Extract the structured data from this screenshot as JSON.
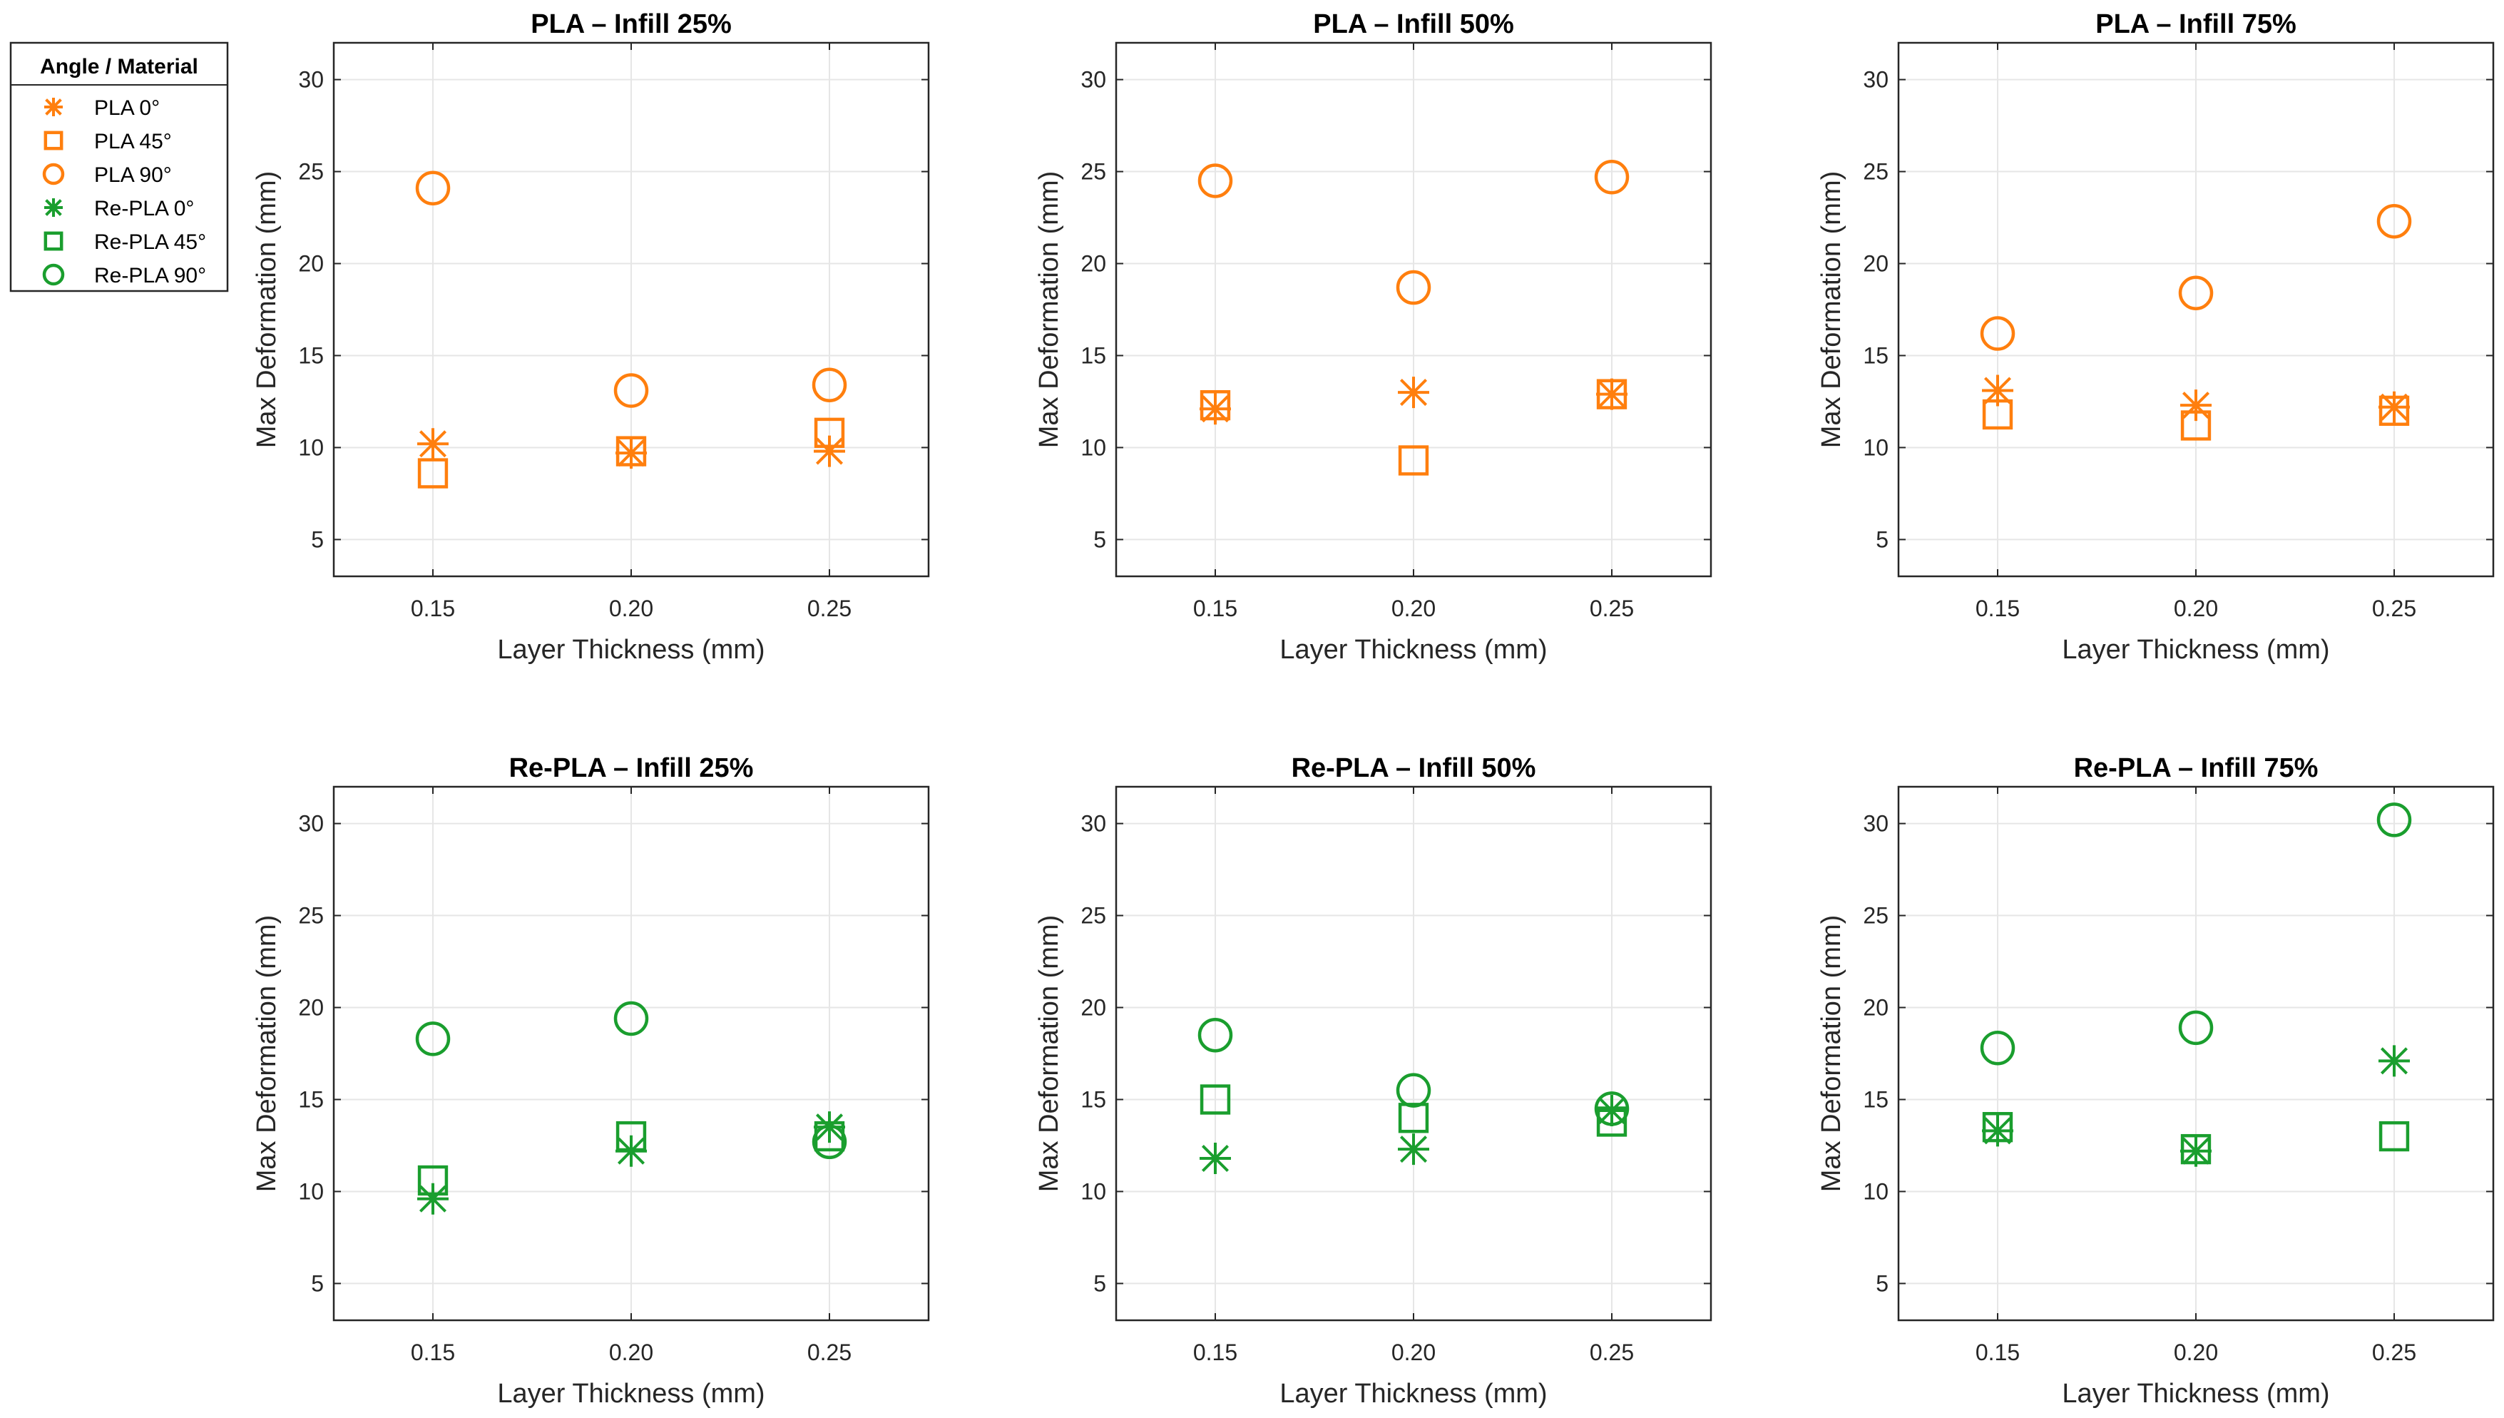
{
  "colors": {
    "PLA": "#FF7F0E",
    "Re-PLA": "#1A9E2E"
  },
  "legend": {
    "title": "Angle / Material",
    "entries": [
      {
        "label": "PLA 0°",
        "material": "PLA",
        "marker": "asterisk"
      },
      {
        "label": "PLA 45°",
        "material": "PLA",
        "marker": "square"
      },
      {
        "label": "PLA 90°",
        "material": "PLA",
        "marker": "circle"
      },
      {
        "label": "Re-PLA 0°",
        "material": "Re-PLA",
        "marker": "asterisk"
      },
      {
        "label": "Re-PLA 45°",
        "material": "Re-PLA",
        "marker": "square"
      },
      {
        "label": "Re-PLA 90°",
        "material": "Re-PLA",
        "marker": "circle"
      }
    ]
  },
  "chart_data": [
    {
      "type": "scatter",
      "title": "PLA – Infill 25%",
      "material": "PLA",
      "xlabel": "Layer Thickness (mm)",
      "ylabel": "Max Deformation (mm)",
      "x": [
        0.15,
        0.2,
        0.25
      ],
      "x_tick_labels": [
        "0.15",
        "0.20",
        "0.25"
      ],
      "xlim": [
        0.125,
        0.275
      ],
      "y_ticks": [
        5,
        10,
        15,
        20,
        25,
        30
      ],
      "ylim": [
        3,
        32
      ],
      "grid": true,
      "series": [
        {
          "name": "PLA 0°",
          "marker": "asterisk",
          "values": [
            10.2,
            9.7,
            9.8
          ]
        },
        {
          "name": "PLA 45°",
          "marker": "square",
          "values": [
            8.6,
            9.8,
            10.8
          ]
        },
        {
          "name": "PLA 90°",
          "marker": "circle",
          "values": [
            24.1,
            13.1,
            13.4
          ]
        }
      ]
    },
    {
      "type": "scatter",
      "title": "PLA – Infill 50%",
      "material": "PLA",
      "xlabel": "Layer Thickness (mm)",
      "ylabel": "Max Deformation (mm)",
      "x": [
        0.15,
        0.2,
        0.25
      ],
      "x_tick_labels": [
        "0.15",
        "0.20",
        "0.25"
      ],
      "xlim": [
        0.125,
        0.275
      ],
      "y_ticks": [
        5,
        10,
        15,
        20,
        25,
        30
      ],
      "ylim": [
        3,
        32
      ],
      "grid": true,
      "series": [
        {
          "name": "PLA 0°",
          "marker": "asterisk",
          "values": [
            12.1,
            13.0,
            12.9
          ]
        },
        {
          "name": "PLA 45°",
          "marker": "square",
          "values": [
            12.3,
            9.3,
            12.9
          ]
        },
        {
          "name": "PLA 90°",
          "marker": "circle",
          "values": [
            24.5,
            18.7,
            24.7
          ]
        }
      ]
    },
    {
      "type": "scatter",
      "title": "PLA – Infill 75%",
      "material": "PLA",
      "xlabel": "Layer Thickness (mm)",
      "ylabel": "Max Deformation (mm)",
      "x": [
        0.15,
        0.2,
        0.25
      ],
      "x_tick_labels": [
        "0.15",
        "0.20",
        "0.25"
      ],
      "xlim": [
        0.125,
        0.275
      ],
      "y_ticks": [
        5,
        10,
        15,
        20,
        25,
        30
      ],
      "ylim": [
        3,
        32
      ],
      "grid": true,
      "series": [
        {
          "name": "PLA 0°",
          "marker": "asterisk",
          "values": [
            13.1,
            12.3,
            12.2
          ]
        },
        {
          "name": "PLA 45°",
          "marker": "square",
          "values": [
            11.8,
            11.2,
            12.0
          ]
        },
        {
          "name": "PLA 90°",
          "marker": "circle",
          "values": [
            16.2,
            18.4,
            22.3
          ]
        }
      ]
    },
    {
      "type": "scatter",
      "title": "Re-PLA – Infill 25%",
      "material": "Re-PLA",
      "xlabel": "Layer Thickness (mm)",
      "ylabel": "Max Deformation (mm)",
      "x": [
        0.15,
        0.2,
        0.25
      ],
      "x_tick_labels": [
        "0.15",
        "0.20",
        "0.25"
      ],
      "xlim": [
        0.125,
        0.275
      ],
      "y_ticks": [
        5,
        10,
        15,
        20,
        25,
        30
      ],
      "ylim": [
        3,
        32
      ],
      "grid": true,
      "series": [
        {
          "name": "Re-PLA 0°",
          "marker": "asterisk",
          "values": [
            9.6,
            12.2,
            13.5
          ]
        },
        {
          "name": "Re-PLA 45°",
          "marker": "square",
          "values": [
            10.6,
            13.0,
            13.0
          ]
        },
        {
          "name": "Re-PLA 90°",
          "marker": "circle",
          "values": [
            18.3,
            19.4,
            12.7
          ]
        }
      ]
    },
    {
      "type": "scatter",
      "title": "Re-PLA – Infill 50%",
      "material": "Re-PLA",
      "xlabel": "Layer Thickness (mm)",
      "ylabel": "Max Deformation (mm)",
      "x": [
        0.15,
        0.2,
        0.25
      ],
      "x_tick_labels": [
        "0.15",
        "0.20",
        "0.25"
      ],
      "xlim": [
        0.125,
        0.275
      ],
      "y_ticks": [
        5,
        10,
        15,
        20,
        25,
        30
      ],
      "ylim": [
        3,
        32
      ],
      "grid": true,
      "series": [
        {
          "name": "Re-PLA 0°",
          "marker": "asterisk",
          "values": [
            11.8,
            12.3,
            14.4
          ]
        },
        {
          "name": "Re-PLA 45°",
          "marker": "square",
          "values": [
            15.0,
            14.0,
            13.8
          ]
        },
        {
          "name": "Re-PLA 90°",
          "marker": "circle",
          "values": [
            18.5,
            15.5,
            14.5
          ]
        }
      ]
    },
    {
      "type": "scatter",
      "title": "Re-PLA – Infill 75%",
      "material": "Re-PLA",
      "xlabel": "Layer Thickness (mm)",
      "ylabel": "Max Deformation (mm)",
      "x": [
        0.15,
        0.2,
        0.25
      ],
      "x_tick_labels": [
        "0.15",
        "0.20",
        "0.25"
      ],
      "xlim": [
        0.125,
        0.275
      ],
      "y_ticks": [
        5,
        10,
        15,
        20,
        25,
        30
      ],
      "ylim": [
        3,
        32
      ],
      "grid": true,
      "series": [
        {
          "name": "Re-PLA 0°",
          "marker": "asterisk",
          "values": [
            13.3,
            12.2,
            17.1
          ]
        },
        {
          "name": "Re-PLA 45°",
          "marker": "square",
          "values": [
            13.5,
            12.3,
            13.0
          ]
        },
        {
          "name": "Re-PLA 90°",
          "marker": "circle",
          "values": [
            17.8,
            18.9,
            30.2
          ]
        }
      ]
    }
  ]
}
